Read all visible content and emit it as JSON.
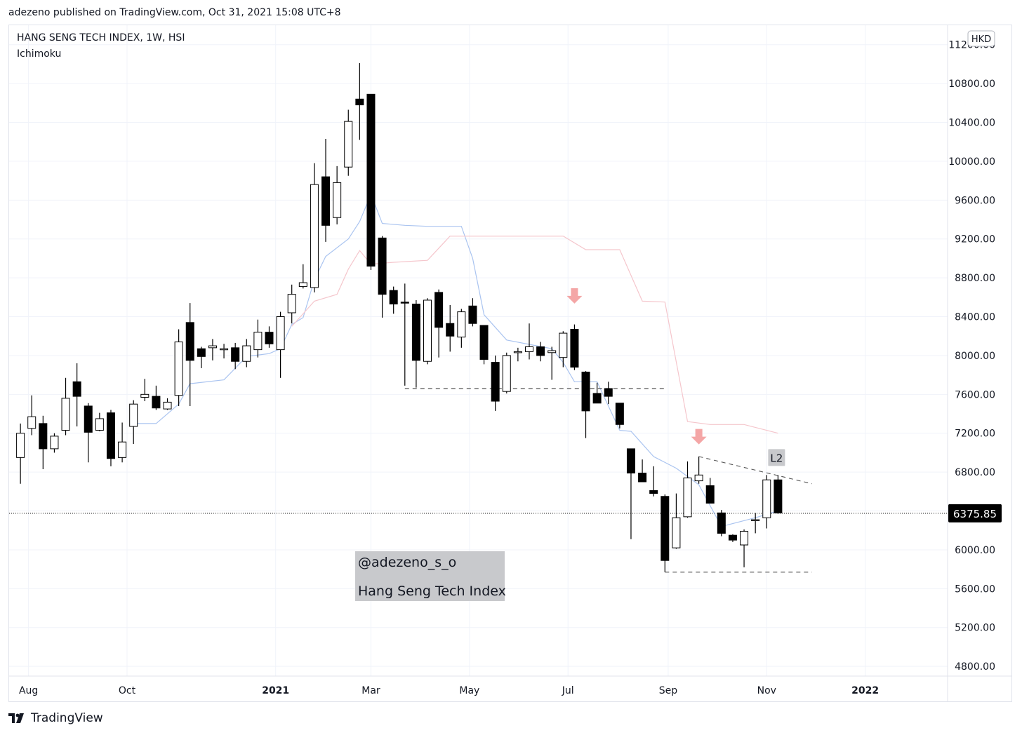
{
  "header": {
    "publisher_line": "adezeno published on TradingView.com, Oct 31, 2021 15:08 UTC+8",
    "symbol_line": "HANG SENG TECH INDEX, 1W, HSI",
    "indicator": "Ichimoku"
  },
  "footer": {
    "brand": "TradingView",
    "logo_icon": "tradingview-logo-icon"
  },
  "annotations": {
    "watermark_handle": "@adezeno_s_o",
    "watermark_title": "Hang Seng Tech Index",
    "level_label": "L2",
    "currency": "HKD",
    "last_price": "6375.85"
  },
  "colors": {
    "up_body": "#ffffff",
    "down_body": "#000000",
    "candle_outline": "#000000",
    "tenkan_line": "#aac4f0",
    "senkou_line": "#f5c6cc",
    "arrow": "#f4a6a6",
    "grid": "#f0f3fa",
    "label_box": "#c8c9cc",
    "price_tag_bg": "#000000"
  },
  "chart_data": {
    "type": "candlestick",
    "title": "HANG SENG TECH INDEX, 1W, HSI",
    "currency": "HKD",
    "ylim": [
      4700,
      11400
    ],
    "yticks": [
      4800,
      5200,
      5600,
      6000,
      6400,
      6800,
      7200,
      7600,
      8000,
      8400,
      8800,
      9200,
      9600,
      10000,
      10400,
      10800,
      11200
    ],
    "ytick_labels": [
      "4800.00",
      "5200.00",
      "5600.00",
      "6000.00",
      "6400.00",
      "6800.00",
      "7200.00",
      "7600.00",
      "8000.00",
      "8400.00",
      "8800.00",
      "9200.00",
      "9600.00",
      "10000.00",
      "10400.00",
      "10800.00",
      "11200.00"
    ],
    "x_start": "2020-07-20",
    "x_end": "2022-02-21",
    "xticks": [
      {
        "label": "Aug",
        "date": "2020-08-01"
      },
      {
        "label": "Oct",
        "date": "2020-10-01"
      },
      {
        "label": "2021",
        "date": "2021-01-01"
      },
      {
        "label": "Mar",
        "date": "2021-03-01"
      },
      {
        "label": "May",
        "date": "2021-05-01"
      },
      {
        "label": "Jul",
        "date": "2021-07-01"
      },
      {
        "label": "Sep",
        "date": "2021-09-01"
      },
      {
        "label": "Nov",
        "date": "2021-11-01"
      },
      {
        "label": "2022",
        "date": "2022-01-01"
      }
    ],
    "grid": true,
    "candles": [
      {
        "date": "2020-07-27",
        "o": 6950,
        "h": 7300,
        "l": 6680,
        "c": 7200
      },
      {
        "date": "2020-08-03",
        "o": 7250,
        "h": 7590,
        "l": 7180,
        "c": 7370
      },
      {
        "date": "2020-08-10",
        "o": 7300,
        "h": 7380,
        "l": 6830,
        "c": 7040
      },
      {
        "date": "2020-08-17",
        "o": 7040,
        "h": 7200,
        "l": 7000,
        "c": 7170
      },
      {
        "date": "2020-08-24",
        "o": 7230,
        "h": 7770,
        "l": 7180,
        "c": 7560
      },
      {
        "date": "2020-08-31",
        "o": 7730,
        "h": 7920,
        "l": 7270,
        "c": 7580
      },
      {
        "date": "2020-09-07",
        "o": 7480,
        "h": 7510,
        "l": 6900,
        "c": 7210
      },
      {
        "date": "2020-09-14",
        "o": 7230,
        "h": 7410,
        "l": 7220,
        "c": 7350
      },
      {
        "date": "2020-09-21",
        "o": 7410,
        "h": 7440,
        "l": 6860,
        "c": 6940
      },
      {
        "date": "2020-09-28",
        "o": 6950,
        "h": 7310,
        "l": 6900,
        "c": 7110
      },
      {
        "date": "2020-10-05",
        "o": 7270,
        "h": 7540,
        "l": 7090,
        "c": 7500
      },
      {
        "date": "2020-10-12",
        "o": 7570,
        "h": 7760,
        "l": 7530,
        "c": 7600
      },
      {
        "date": "2020-10-19",
        "o": 7580,
        "h": 7690,
        "l": 7440,
        "c": 7460
      },
      {
        "date": "2020-10-26",
        "o": 7450,
        "h": 7560,
        "l": 7440,
        "c": 7520
      },
      {
        "date": "2020-11-02",
        "o": 7590,
        "h": 8270,
        "l": 7480,
        "c": 8140
      },
      {
        "date": "2020-11-09",
        "o": 8340,
        "h": 8540,
        "l": 7480,
        "c": 7950
      },
      {
        "date": "2020-11-16",
        "o": 8070,
        "h": 8090,
        "l": 7870,
        "c": 7990
      },
      {
        "date": "2020-11-23",
        "o": 8080,
        "h": 8170,
        "l": 7950,
        "c": 8100
      },
      {
        "date": "2020-11-30",
        "o": 8060,
        "h": 8120,
        "l": 7970,
        "c": 8070
      },
      {
        "date": "2020-12-07",
        "o": 8080,
        "h": 8130,
        "l": 7860,
        "c": 7940
      },
      {
        "date": "2020-12-14",
        "o": 7940,
        "h": 8170,
        "l": 7880,
        "c": 8100
      },
      {
        "date": "2020-12-21",
        "o": 8060,
        "h": 8370,
        "l": 7980,
        "c": 8240
      },
      {
        "date": "2020-12-28",
        "o": 8240,
        "h": 8300,
        "l": 8080,
        "c": 8120
      },
      {
        "date": "2021-01-04",
        "o": 8060,
        "h": 8450,
        "l": 7770,
        "c": 8400
      },
      {
        "date": "2021-01-11",
        "o": 8440,
        "h": 8730,
        "l": 8330,
        "c": 8630
      },
      {
        "date": "2021-01-18",
        "o": 8710,
        "h": 8940,
        "l": 8690,
        "c": 8750
      },
      {
        "date": "2021-01-25",
        "o": 8700,
        "h": 9980,
        "l": 8650,
        "c": 9760
      },
      {
        "date": "2021-02-01",
        "o": 9840,
        "h": 10230,
        "l": 9170,
        "c": 9340
      },
      {
        "date": "2021-02-08",
        "o": 9420,
        "h": 9950,
        "l": 9350,
        "c": 9780
      },
      {
        "date": "2021-02-15",
        "o": 9940,
        "h": 10530,
        "l": 9850,
        "c": 10410
      },
      {
        "date": "2021-02-22",
        "o": 10640,
        "h": 11010,
        "l": 10220,
        "c": 10580
      },
      {
        "date": "2021-03-01",
        "o": 10690,
        "h": 10690,
        "l": 8880,
        "c": 8920
      },
      {
        "date": "2021-03-08",
        "o": 9210,
        "h": 9230,
        "l": 8390,
        "c": 8630
      },
      {
        "date": "2021-03-15",
        "o": 8670,
        "h": 8710,
        "l": 8430,
        "c": 8530
      },
      {
        "date": "2021-03-22",
        "o": 8550,
        "h": 8740,
        "l": 7690,
        "c": 8540
      },
      {
        "date": "2021-03-29",
        "o": 8530,
        "h": 8570,
        "l": 7670,
        "c": 7950
      },
      {
        "date": "2021-04-05",
        "o": 7940,
        "h": 8590,
        "l": 7910,
        "c": 8570
      },
      {
        "date": "2021-04-12",
        "o": 8650,
        "h": 8680,
        "l": 7980,
        "c": 8290
      },
      {
        "date": "2021-04-19",
        "o": 8330,
        "h": 8520,
        "l": 8040,
        "c": 8200
      },
      {
        "date": "2021-04-26",
        "o": 8190,
        "h": 8480,
        "l": 8080,
        "c": 8450
      },
      {
        "date": "2021-05-03",
        "o": 8510,
        "h": 8590,
        "l": 8300,
        "c": 8330
      },
      {
        "date": "2021-05-10",
        "o": 8310,
        "h": 8310,
        "l": 7910,
        "c": 7960
      },
      {
        "date": "2021-05-17",
        "o": 7930,
        "h": 8000,
        "l": 7430,
        "c": 7530
      },
      {
        "date": "2021-05-24",
        "o": 7630,
        "h": 8030,
        "l": 7610,
        "c": 8000
      },
      {
        "date": "2021-05-31",
        "o": 8040,
        "h": 8080,
        "l": 7940,
        "c": 8040
      },
      {
        "date": "2021-06-07",
        "o": 8040,
        "h": 8330,
        "l": 7960,
        "c": 8090
      },
      {
        "date": "2021-06-14",
        "o": 8090,
        "h": 8140,
        "l": 7940,
        "c": 8000
      },
      {
        "date": "2021-06-21",
        "o": 8030,
        "h": 8090,
        "l": 7750,
        "c": 8050
      },
      {
        "date": "2021-06-28",
        "o": 7980,
        "h": 8250,
        "l": 7880,
        "c": 8230
      },
      {
        "date": "2021-07-05",
        "o": 8270,
        "h": 8320,
        "l": 7850,
        "c": 7880
      },
      {
        "date": "2021-07-12",
        "o": 7830,
        "h": 7840,
        "l": 7150,
        "c": 7430
      },
      {
        "date": "2021-07-19",
        "o": 7610,
        "h": 7720,
        "l": 7520,
        "c": 7510
      },
      {
        "date": "2021-07-26",
        "o": 7660,
        "h": 7730,
        "l": 7500,
        "c": 7580
      },
      {
        "date": "2021-08-02",
        "o": 7510,
        "h": 7510,
        "l": 7250,
        "c": 7290
      },
      {
        "date": "2021-08-09",
        "o": 7040,
        "h": 7040,
        "l": 6110,
        "c": 6790
      },
      {
        "date": "2021-08-16",
        "o": 6790,
        "h": 6930,
        "l": 6700,
        "c": 6700
      },
      {
        "date": "2021-08-23",
        "o": 6610,
        "h": 6860,
        "l": 6550,
        "c": 6580
      },
      {
        "date": "2021-08-30",
        "o": 6550,
        "h": 6570,
        "l": 5770,
        "c": 5890
      },
      {
        "date": "2021-09-06",
        "o": 6020,
        "h": 6580,
        "l": 6010,
        "c": 6330
      },
      {
        "date": "2021-09-13",
        "o": 6340,
        "h": 6910,
        "l": 6330,
        "c": 6740
      },
      {
        "date": "2021-09-20",
        "o": 6710,
        "h": 6960,
        "l": 6680,
        "c": 6770
      },
      {
        "date": "2021-09-27",
        "o": 6660,
        "h": 6740,
        "l": 6480,
        "c": 6480
      },
      {
        "date": "2021-10-04",
        "o": 6380,
        "h": 6410,
        "l": 6140,
        "c": 6170
      },
      {
        "date": "2021-10-11",
        "o": 6150,
        "h": 6160,
        "l": 6080,
        "c": 6100
      },
      {
        "date": "2021-10-18",
        "o": 6050,
        "h": 6210,
        "l": 5820,
        "c": 6190
      },
      {
        "date": "2021-10-25",
        "o": 6310,
        "h": 6380,
        "l": 6170,
        "c": 6310
      },
      {
        "date": "2021-11-01",
        "o": 6330,
        "h": 6770,
        "l": 6220,
        "c": 6720
      },
      {
        "date": "2021-11-08",
        "o": 6720,
        "h": 6770,
        "l": 6370,
        "c": 6380
      }
    ],
    "tenkan_line": [
      [
        "2020-10-05",
        7300
      ],
      [
        "2020-10-19",
        7300
      ],
      [
        "2020-11-02",
        7500
      ],
      [
        "2020-11-09",
        7710
      ],
      [
        "2020-11-30",
        7750
      ],
      [
        "2020-12-14",
        7990
      ],
      [
        "2020-12-28",
        8020
      ],
      [
        "2021-01-04",
        8070
      ],
      [
        "2021-01-11",
        8320
      ],
      [
        "2021-01-18",
        8390
      ],
      [
        "2021-01-25",
        8780
      ],
      [
        "2021-02-01",
        9020
      ],
      [
        "2021-02-15",
        9200
      ],
      [
        "2021-02-22",
        9380
      ],
      [
        "2021-03-01",
        9660
      ],
      [
        "2021-03-08",
        9360
      ],
      [
        "2021-03-22",
        9340
      ],
      [
        "2021-04-05",
        9330
      ],
      [
        "2021-04-26",
        9330
      ],
      [
        "2021-05-03",
        9000
      ],
      [
        "2021-05-10",
        8420
      ],
      [
        "2021-05-24",
        8160
      ],
      [
        "2021-06-21",
        8070
      ],
      [
        "2021-06-28",
        7930
      ],
      [
        "2021-07-05",
        7730
      ],
      [
        "2021-07-19",
        7730
      ],
      [
        "2021-08-02",
        7230
      ],
      [
        "2021-08-09",
        7220
      ],
      [
        "2021-08-23",
        6960
      ],
      [
        "2021-09-06",
        6840
      ],
      [
        "2021-09-20",
        6670
      ],
      [
        "2021-10-04",
        6240
      ],
      [
        "2021-10-25",
        6330
      ],
      [
        "2021-11-08",
        6400
      ]
    ],
    "senkou_line": [
      [
        "2021-01-11",
        8300
      ],
      [
        "2021-01-25",
        8560
      ],
      [
        "2021-02-08",
        8630
      ],
      [
        "2021-02-15",
        8890
      ],
      [
        "2021-02-22",
        9080
      ],
      [
        "2021-03-01",
        8940
      ],
      [
        "2021-03-15",
        8960
      ],
      [
        "2021-04-05",
        8980
      ],
      [
        "2021-04-19",
        9230
      ],
      [
        "2021-06-28",
        9230
      ],
      [
        "2021-07-12",
        9090
      ],
      [
        "2021-08-02",
        9090
      ],
      [
        "2021-08-16",
        8560
      ],
      [
        "2021-08-30",
        8550
      ],
      [
        "2021-09-13",
        7320
      ],
      [
        "2021-09-27",
        7290
      ],
      [
        "2021-10-18",
        7290
      ],
      [
        "2021-11-08",
        7200
      ]
    ],
    "drawings": {
      "support_1": {
        "price": 7660,
        "from": "2021-03-22",
        "to": "2021-08-30"
      },
      "support_2": {
        "price": 5770,
        "from": "2021-08-30",
        "to": "2021-11-29"
      },
      "descending_trendline": {
        "from": [
          "2021-09-20",
          6960
        ],
        "to": [
          "2021-11-29",
          6680
        ]
      },
      "down_arrows": [
        [
          "2021-07-05",
          8600
        ],
        [
          "2021-09-20",
          7150
        ]
      ],
      "l2_label": [
        "2021-11-08",
        6950
      ],
      "current_price_line": 6375.85
    }
  }
}
